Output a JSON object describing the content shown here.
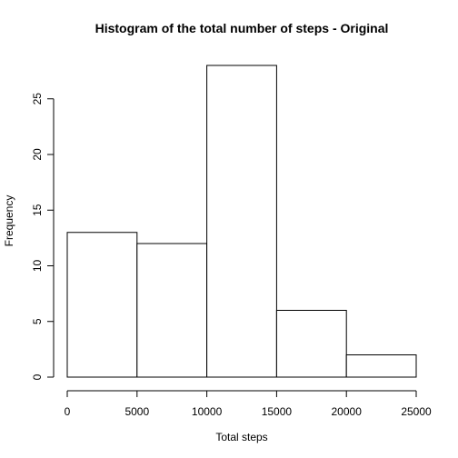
{
  "chart_data": {
    "type": "bar",
    "title": "Histogram of the total number of steps - Original",
    "xlabel": "Total steps",
    "ylabel": "Frequency",
    "bins": [
      {
        "start": 0,
        "end": 5000,
        "count": 13
      },
      {
        "start": 5000,
        "end": 10000,
        "count": 12
      },
      {
        "start": 10000,
        "end": 15000,
        "count": 28
      },
      {
        "start": 15000,
        "end": 20000,
        "count": 6
      },
      {
        "start": 20000,
        "end": 25000,
        "count": 2
      }
    ],
    "xlim": [
      0,
      25000
    ],
    "ylim": [
      0,
      28
    ],
    "x_ticks": [
      0,
      5000,
      10000,
      15000,
      20000,
      25000
    ],
    "y_ticks": [
      0,
      5,
      10,
      15,
      20,
      25
    ],
    "grid": false,
    "legend": "none"
  }
}
